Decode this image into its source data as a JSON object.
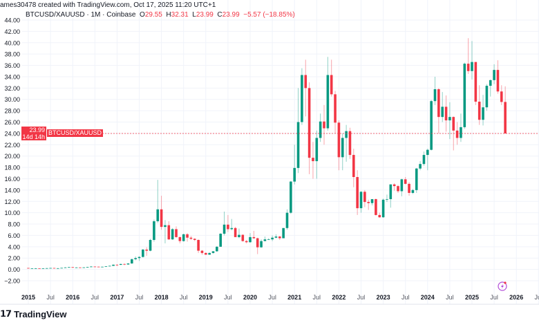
{
  "header": {
    "credit": "ames30478 created with TradingView.com, Oct 17, 2025 11:20 UTC+1",
    "symbol": "BTCUSD/XAUUSD · 1M · Coinbase",
    "open_label": "O",
    "open": "29.55",
    "high_label": "H",
    "high": "32.31",
    "low_label": "L",
    "low": "23.99",
    "close_label": "C",
    "close": "23.99",
    "change": "−5.57 (−18.85%)"
  },
  "price_line": {
    "value": "23.99",
    "countdown": "14d 14h",
    "symbol": "BTCUSD/XAUUSD"
  },
  "footer": {
    "brand": "TradingView",
    "logo_icon": "tradingview-logo-icon"
  },
  "colors": {
    "up": "#089981",
    "down": "#F23645",
    "grid": "#F0F3FA"
  },
  "chart_data": {
    "type": "candlestick",
    "interval": "1M",
    "start": "2015-01",
    "ylim": [
      -2,
      44
    ],
    "y_ticks": [
      "44.00",
      "42.00",
      "40.00",
      "38.00",
      "36.00",
      "34.00",
      "32.00",
      "30.00",
      "28.00",
      "26.00",
      "24.00",
      "22.00",
      "20.00",
      "18.00",
      "16.00",
      "14.00",
      "12.00",
      "10.00",
      "8.00",
      "6.00",
      "4.00",
      "2.00",
      "0.00",
      "−2.00"
    ],
    "x_ticks": [
      "2015",
      "Jul",
      "2016",
      "Jul",
      "2017",
      "Jul",
      "2018",
      "Jul",
      "2019",
      "Jul",
      "2020",
      "Jul",
      "2021",
      "Jul",
      "2022",
      "Jul",
      "2023",
      "Jul",
      "2024",
      "Jul",
      "2025",
      "Jul",
      "2026",
      "Jul"
    ],
    "grid": true,
    "ohlc": [
      [
        0.25,
        0.27,
        0.16,
        0.18
      ],
      [
        0.18,
        0.21,
        0.17,
        0.2
      ],
      [
        0.2,
        0.23,
        0.18,
        0.2
      ],
      [
        0.2,
        0.21,
        0.18,
        0.19
      ],
      [
        0.19,
        0.21,
        0.18,
        0.2
      ],
      [
        0.2,
        0.23,
        0.19,
        0.22
      ],
      [
        0.22,
        0.27,
        0.21,
        0.25
      ],
      [
        0.25,
        0.26,
        0.19,
        0.2
      ],
      [
        0.2,
        0.22,
        0.19,
        0.21
      ],
      [
        0.21,
        0.28,
        0.2,
        0.27
      ],
      [
        0.27,
        0.4,
        0.26,
        0.35
      ],
      [
        0.35,
        0.44,
        0.33,
        0.4
      ],
      [
        0.4,
        0.42,
        0.3,
        0.3
      ],
      [
        0.3,
        0.37,
        0.29,
        0.35
      ],
      [
        0.35,
        0.36,
        0.33,
        0.34
      ],
      [
        0.34,
        0.38,
        0.33,
        0.36
      ],
      [
        0.36,
        0.45,
        0.35,
        0.42
      ],
      [
        0.42,
        0.6,
        0.4,
        0.5
      ],
      [
        0.5,
        0.52,
        0.44,
        0.48
      ],
      [
        0.48,
        0.49,
        0.42,
        0.43
      ],
      [
        0.43,
        0.48,
        0.42,
        0.47
      ],
      [
        0.47,
        0.56,
        0.46,
        0.55
      ],
      [
        0.55,
        0.65,
        0.54,
        0.63
      ],
      [
        0.63,
        0.85,
        0.62,
        0.83
      ],
      [
        0.83,
        0.9,
        0.6,
        0.8
      ],
      [
        0.8,
        1.0,
        0.78,
        0.95
      ],
      [
        0.95,
        1.05,
        0.75,
        0.87
      ],
      [
        0.87,
        1.08,
        0.85,
        1.05
      ],
      [
        1.05,
        1.9,
        1.0,
        1.8
      ],
      [
        1.8,
        2.3,
        1.6,
        2.0
      ],
      [
        2.0,
        2.3,
        1.5,
        2.2
      ],
      [
        2.2,
        3.6,
        2.1,
        3.5
      ],
      [
        3.5,
        3.9,
        2.4,
        3.3
      ],
      [
        3.3,
        5.4,
        3.2,
        5.2
      ],
      [
        5.2,
        8.8,
        4.9,
        8.5
      ],
      [
        8.5,
        15.8,
        8.2,
        10.6
      ],
      [
        10.6,
        13.0,
        7.0,
        7.5
      ],
      [
        7.5,
        8.7,
        4.6,
        7.8
      ],
      [
        7.8,
        8.5,
        5.2,
        5.3
      ],
      [
        5.3,
        7.3,
        5.2,
        7.1
      ],
      [
        7.1,
        7.6,
        5.6,
        5.7
      ],
      [
        5.7,
        5.8,
        4.6,
        5.0
      ],
      [
        5.0,
        6.3,
        4.9,
        6.2
      ],
      [
        6.2,
        6.4,
        4.9,
        5.6
      ],
      [
        5.6,
        5.9,
        5.2,
        5.4
      ],
      [
        5.4,
        5.5,
        5.0,
        5.2
      ],
      [
        5.2,
        5.3,
        2.9,
        3.3
      ],
      [
        3.3,
        3.4,
        2.6,
        2.9
      ],
      [
        2.9,
        3.0,
        2.6,
        2.6
      ],
      [
        2.6,
        3.0,
        2.6,
        2.9
      ],
      [
        2.9,
        3.2,
        2.8,
        3.2
      ],
      [
        3.2,
        4.1,
        3.1,
        4.0
      ],
      [
        4.0,
        6.4,
        4.0,
        6.3
      ],
      [
        6.3,
        10.2,
        6.0,
        7.9
      ],
      [
        7.9,
        9.6,
        6.6,
        7.1
      ],
      [
        7.1,
        8.9,
        6.9,
        7.3
      ],
      [
        7.3,
        7.5,
        5.7,
        5.7
      ],
      [
        5.7,
        7.2,
        5.5,
        6.1
      ],
      [
        6.1,
        6.2,
        4.9,
        5.0
      ],
      [
        5.0,
        5.2,
        4.6,
        4.8
      ],
      [
        4.8,
        6.4,
        4.7,
        5.7
      ],
      [
        5.7,
        6.8,
        5.4,
        5.5
      ],
      [
        5.5,
        5.6,
        2.7,
        3.9
      ],
      [
        3.9,
        5.3,
        3.8,
        5.0
      ],
      [
        5.0,
        5.8,
        5.0,
        5.3
      ],
      [
        5.3,
        5.5,
        5.2,
        5.3
      ],
      [
        5.3,
        6.0,
        5.0,
        5.6
      ],
      [
        5.6,
        6.2,
        5.5,
        5.8
      ],
      [
        5.8,
        5.9,
        5.2,
        5.5
      ],
      [
        5.5,
        7.3,
        5.5,
        7.3
      ],
      [
        7.3,
        10.6,
        7.0,
        10.0
      ],
      [
        10.0,
        15.6,
        9.8,
        15.5
      ],
      [
        15.5,
        22.0,
        15.0,
        17.9
      ],
      [
        17.9,
        32.0,
        17.0,
        26.0
      ],
      [
        26.0,
        35.5,
        25.5,
        34.3
      ],
      [
        34.3,
        37.0,
        27.0,
        32.0
      ],
      [
        32.0,
        33.0,
        16.8,
        19.7
      ],
      [
        19.7,
        22.5,
        16.0,
        19.1
      ],
      [
        19.1,
        24.5,
        16.0,
        23.2
      ],
      [
        23.2,
        27.5,
        22.5,
        26.1
      ],
      [
        26.1,
        29.0,
        22.0,
        24.9
      ],
      [
        24.9,
        37.5,
        24.5,
        34.3
      ],
      [
        34.3,
        37.0,
        30.5,
        30.9
      ],
      [
        30.9,
        31.5,
        24.0,
        25.9
      ],
      [
        25.9,
        26.3,
        17.5,
        19.8
      ],
      [
        19.8,
        24.0,
        17.5,
        23.2
      ],
      [
        23.2,
        25.5,
        19.0,
        24.4
      ],
      [
        24.4,
        25.0,
        19.5,
        20.2
      ],
      [
        20.2,
        21.3,
        14.5,
        16.3
      ],
      [
        16.3,
        17.5,
        9.6,
        10.8
      ],
      [
        10.8,
        13.8,
        10.0,
        13.7
      ],
      [
        13.7,
        14.0,
        11.0,
        11.9
      ],
      [
        11.9,
        12.3,
        10.5,
        11.7
      ],
      [
        11.7,
        12.4,
        11.3,
        12.4
      ],
      [
        12.4,
        12.5,
        9.5,
        9.6
      ],
      [
        9.6,
        10.0,
        9.1,
        9.2
      ],
      [
        9.2,
        12.5,
        9.1,
        12.3
      ],
      [
        12.3,
        13.2,
        11.9,
        12.4
      ],
      [
        12.4,
        15.0,
        10.9,
        15.0
      ],
      [
        15.0,
        15.2,
        13.9,
        14.7
      ],
      [
        14.7,
        14.9,
        13.5,
        13.8
      ],
      [
        13.8,
        16.0,
        12.9,
        15.9
      ],
      [
        15.9,
        16.3,
        15.0,
        15.1
      ],
      [
        15.1,
        15.4,
        13.0,
        13.5
      ],
      [
        13.5,
        14.2,
        13.3,
        14.0
      ],
      [
        14.0,
        17.9,
        13.5,
        17.8
      ],
      [
        17.8,
        19.1,
        17.5,
        18.6
      ],
      [
        18.6,
        20.8,
        18.3,
        20.2
      ],
      [
        20.2,
        21.3,
        17.5,
        21.1
      ],
      [
        21.1,
        29.9,
        21.0,
        29.7
      ],
      [
        29.7,
        34.0,
        29.0,
        31.8
      ],
      [
        31.8,
        32.0,
        24.0,
        26.9
      ],
      [
        26.9,
        31.3,
        26.0,
        28.7
      ],
      [
        28.7,
        30.7,
        24.3,
        26.3
      ],
      [
        26.3,
        29.5,
        23.0,
        26.9
      ],
      [
        26.9,
        27.0,
        21.0,
        24.5
      ],
      [
        24.5,
        26.0,
        22.0,
        23.2
      ],
      [
        23.2,
        27.5,
        22.5,
        25.1
      ],
      [
        25.1,
        36.5,
        24.8,
        36.3
      ],
      [
        36.3,
        40.8,
        34.5,
        35.0
      ],
      [
        35.0,
        40.3,
        33.5,
        36.6
      ],
      [
        36.6,
        36.6,
        29.0,
        29.6
      ],
      [
        29.6,
        32.5,
        25.5,
        26.4
      ],
      [
        26.4,
        30.8,
        25.4,
        28.6
      ],
      [
        28.6,
        32.7,
        28.0,
        32.4
      ],
      [
        32.4,
        33.5,
        30.5,
        33.4
      ],
      [
        33.4,
        36.2,
        32.7,
        35.2
      ],
      [
        35.2,
        36.9,
        31.0,
        31.4
      ],
      [
        31.4,
        32.5,
        29.0,
        29.55
      ],
      [
        29.55,
        32.31,
        23.99,
        23.99
      ]
    ],
    "last_price": 23.99
  }
}
